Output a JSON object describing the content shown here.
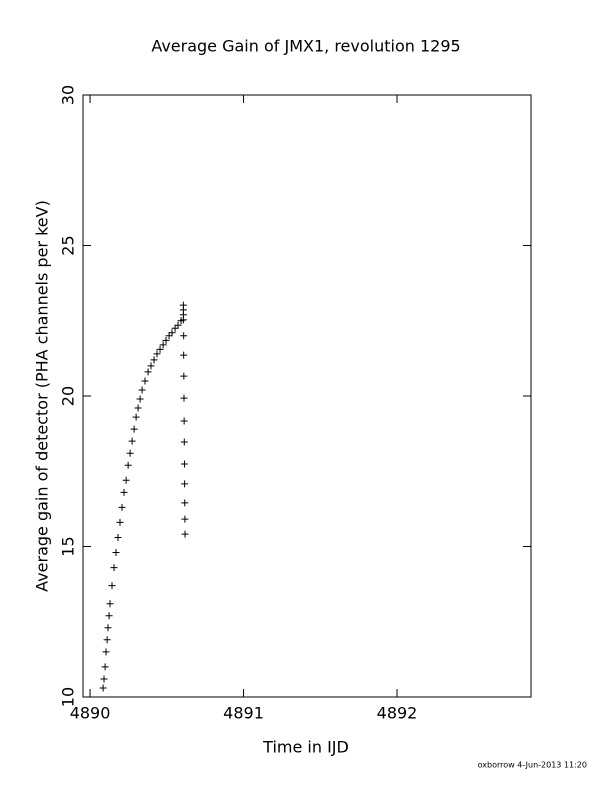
{
  "chart_data": {
    "type": "scatter",
    "title": "Average Gain of JMX1, revolution 1295",
    "x_label": "Time in IJD",
    "y_label": "Average gain of detector (PHA channels per keV)",
    "footer": "oxborrow  4-Jun-2013 11:20",
    "xlim": [
      4889.954,
      4892.873
    ],
    "ylim": [
      10,
      30
    ],
    "xticks": [
      4890,
      4891,
      4892
    ],
    "yticks": [
      10,
      15,
      20,
      25,
      30
    ],
    "color": "#000000",
    "marker": "plus",
    "x": [
      4890.085,
      4890.091,
      4890.098,
      4890.104,
      4890.111,
      4890.117,
      4890.124,
      4890.13,
      4890.143,
      4890.156,
      4890.169,
      4890.182,
      4890.195,
      4890.208,
      4890.221,
      4890.235,
      4890.248,
      4890.261,
      4890.274,
      4890.287,
      4890.3,
      4890.313,
      4890.326,
      4890.339,
      4890.358,
      4890.378,
      4890.397,
      4890.417,
      4890.436,
      4890.456,
      4890.476,
      4890.495,
      4890.515,
      4890.534,
      4890.554,
      4890.573,
      4890.593,
      4890.608,
      4890.608,
      4890.608,
      4890.608,
      4890.61,
      4890.61,
      4890.611,
      4890.612,
      4890.613,
      4890.614,
      4890.615,
      4890.616,
      4890.617,
      4890.618,
      4890.619
    ],
    "values": [
      10.3,
      10.6,
      11.0,
      11.5,
      11.9,
      12.3,
      12.7,
      13.1,
      13.7,
      14.3,
      14.8,
      15.3,
      15.8,
      16.3,
      16.8,
      17.2,
      17.7,
      18.1,
      18.5,
      18.9,
      19.3,
      19.6,
      19.9,
      20.2,
      20.5,
      20.8,
      21.0,
      21.2,
      21.4,
      21.55,
      21.7,
      21.85,
      22.0,
      22.1,
      22.25,
      22.35,
      22.5,
      23.02,
      22.86,
      22.7,
      22.53,
      22.0,
      21.36,
      20.66,
      19.93,
      19.17,
      18.47,
      17.74,
      17.08,
      16.45,
      15.91,
      15.41
    ]
  }
}
